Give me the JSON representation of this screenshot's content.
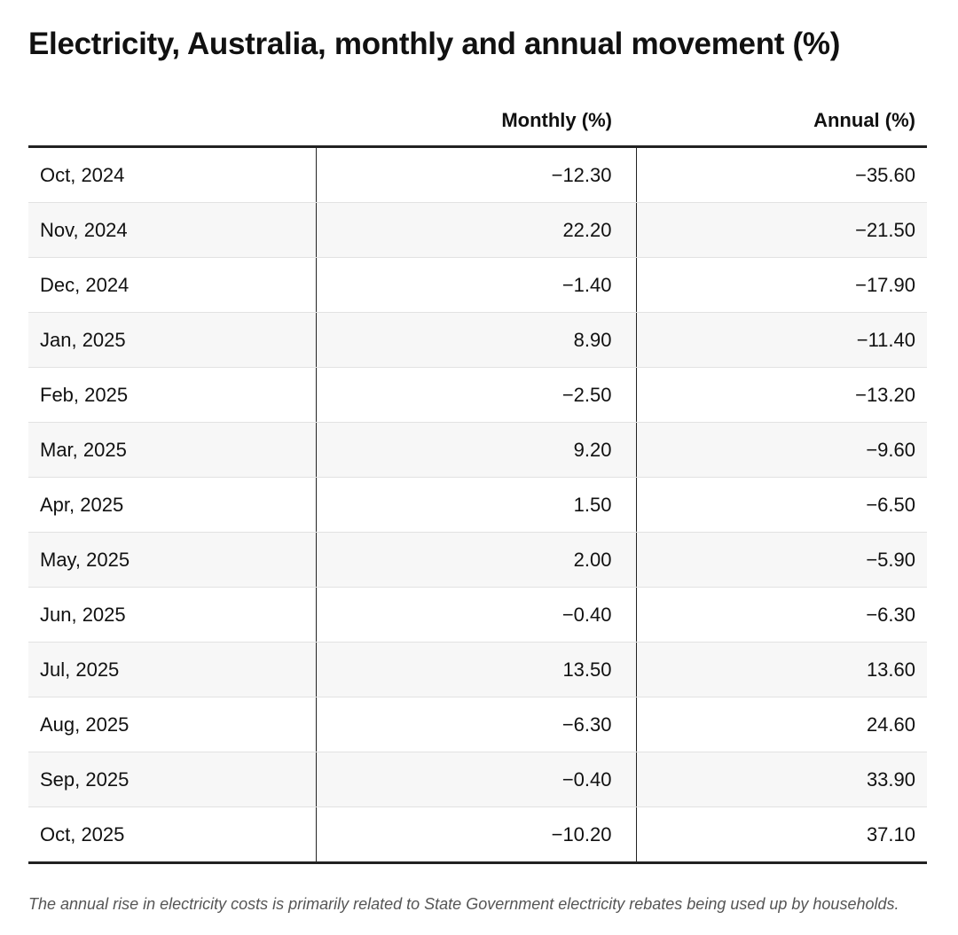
{
  "title": "Electricity, Australia, monthly and annual movement (%)",
  "table": {
    "header": [
      "Monthly (%)",
      "Annual (%)"
    ],
    "rows": [
      [
        "Oct, 2024",
        "−12.30",
        "−35.60"
      ],
      [
        "Nov, 2024",
        "22.20",
        "−21.50"
      ],
      [
        "Dec, 2024",
        "−1.40",
        "−17.90"
      ],
      [
        "Jan, 2025",
        "8.90",
        "−11.40"
      ],
      [
        "Feb, 2025",
        "−2.50",
        "−13.20"
      ],
      [
        "Mar, 2025",
        "9.20",
        "−9.60"
      ],
      [
        "Apr, 2025",
        "1.50",
        "−6.50"
      ],
      [
        "May, 2025",
        "2.00",
        "−5.90"
      ],
      [
        "Jun, 2025",
        "−0.40",
        "−6.30"
      ],
      [
        "Jul, 2025",
        "13.50",
        "13.60"
      ],
      [
        "Aug, 2025",
        "−6.30",
        "24.60"
      ],
      [
        "Sep, 2025",
        "−0.40",
        "33.90"
      ],
      [
        "Oct, 2025",
        "−10.20",
        "37.10"
      ]
    ]
  },
  "footnote": "The annual rise in electricity costs is primarily related to State Government electricity rebates being used up by households."
}
